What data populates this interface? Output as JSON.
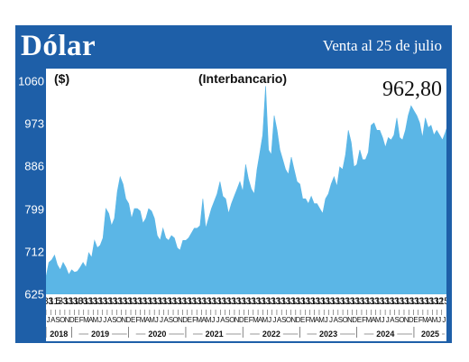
{
  "header": {
    "title": "Dólar",
    "subtitle": "Venta al 25 de julio"
  },
  "colors": {
    "frame": "#1e5fa8",
    "area": "#5bb6e6",
    "text": "#111111"
  },
  "chart_data": {
    "type": "area",
    "title": "Dólar",
    "subtitle": "(Interbancario)",
    "unit_label": "($)",
    "last_value_label": "962,80",
    "ylim": [
      625,
      1060
    ],
    "yticks": [
      "1060",
      "973",
      "886",
      "799",
      "712",
      "625"
    ],
    "xlim": [
      2018.55,
      2025.57
    ],
    "grid": false,
    "day_ticks": [
      "31",
      "31",
      "5",
      "31",
      "31",
      "31",
      "30",
      "31",
      "31",
      "31",
      "31",
      "31",
      "31",
      "31",
      "31",
      "31",
      "31",
      "31",
      "31",
      "31",
      "31",
      "31",
      "31",
      "31",
      "31",
      "31",
      "31",
      "31",
      "31",
      "31",
      "31",
      "31",
      "31",
      "31",
      "31",
      "31",
      "31",
      "31",
      "31",
      "31",
      "31",
      "31",
      "31",
      "31",
      "31",
      "31",
      "31",
      "31",
      "31",
      "31",
      "31",
      "31",
      "31",
      "31",
      "31",
      "31",
      "31",
      "31",
      "31",
      "31",
      "31",
      "31",
      "31",
      "31",
      "31",
      "31",
      "31",
      "31",
      "31",
      "31",
      "31",
      "31",
      "31",
      "31",
      "31",
      "31",
      "31",
      "31",
      "31",
      "31",
      "25"
    ],
    "month_ticks": [
      "J",
      "A",
      "S",
      "O",
      "N",
      "D",
      "E",
      "F",
      "M",
      "A",
      "M",
      "J",
      "J",
      "A",
      "S",
      "O",
      "N",
      "D",
      "E",
      "F",
      "M",
      "A",
      "M",
      "J",
      "J",
      "A",
      "S",
      "O",
      "N",
      "D",
      "E",
      "F",
      "M",
      "A",
      "M",
      "J",
      "J",
      "A",
      "S",
      "O",
      "N",
      "D",
      "E",
      "F",
      "M",
      "A",
      "M",
      "J",
      "J",
      "A",
      "S",
      "O",
      "N",
      "D",
      "E",
      "F",
      "M",
      "A",
      "M",
      "J",
      "J",
      "A",
      "S",
      "O",
      "N",
      "D",
      "E",
      "F",
      "M",
      "A",
      "M",
      "J",
      "J",
      "A",
      "S",
      "O",
      "N",
      "D",
      "E",
      "F",
      "M",
      "A",
      "M",
      "J",
      "J"
    ],
    "years": [
      {
        "label": "2018",
        "start": 2018.55,
        "end": 2019.0
      },
      {
        "label": "2019",
        "start": 2019.0,
        "end": 2020.0
      },
      {
        "label": "2020",
        "start": 2020.0,
        "end": 2021.0
      },
      {
        "label": "2021",
        "start": 2021.0,
        "end": 2022.0
      },
      {
        "label": "2022",
        "start": 2022.0,
        "end": 2023.0
      },
      {
        "label": "2023",
        "start": 2023.0,
        "end": 2024.0
      },
      {
        "label": "2024",
        "start": 2024.0,
        "end": 2025.0
      },
      {
        "label": "2025",
        "start": 2025.0,
        "end": 2025.57
      }
    ],
    "series": [
      {
        "x": [
          2018.55,
          2018.6,
          2018.65,
          2018.7,
          2018.75,
          2018.8,
          2018.85,
          2018.9,
          2018.95,
          2019.0,
          2019.05,
          2019.1,
          2019.15,
          2019.2,
          2019.25,
          2019.3,
          2019.35,
          2019.4,
          2019.45,
          2019.5,
          2019.55,
          2019.6,
          2019.65,
          2019.7,
          2019.75,
          2019.8,
          2019.85,
          2019.9,
          2019.95,
          2020.0,
          2020.05,
          2020.1,
          2020.15,
          2020.2,
          2020.25,
          2020.3,
          2020.35,
          2020.4,
          2020.45,
          2020.5,
          2020.55,
          2020.6,
          2020.65,
          2020.7,
          2020.75,
          2020.8,
          2020.85,
          2020.9,
          2020.95,
          2021.0,
          2021.05,
          2021.1,
          2021.15,
          2021.2,
          2021.25,
          2021.3,
          2021.35,
          2021.4,
          2021.45,
          2021.5,
          2021.55,
          2021.6,
          2021.65,
          2021.7,
          2021.75,
          2021.8,
          2021.85,
          2021.9,
          2021.95,
          2022.0,
          2022.05,
          2022.1,
          2022.15,
          2022.2,
          2022.25,
          2022.3,
          2022.35,
          2022.4,
          2022.45,
          2022.5,
          2022.55,
          2022.6,
          2022.65,
          2022.7,
          2022.75,
          2022.8,
          2022.85,
          2022.9,
          2022.95,
          2023.0,
          2023.05,
          2023.1,
          2023.15,
          2023.2,
          2023.25,
          2023.3,
          2023.35,
          2023.4,
          2023.45,
          2023.5,
          2023.55,
          2023.6,
          2023.65,
          2023.7,
          2023.75,
          2023.8,
          2023.85,
          2023.9,
          2023.95,
          2024.0,
          2024.05,
          2024.1,
          2024.15,
          2024.2,
          2024.25,
          2024.3,
          2024.35,
          2024.4,
          2024.45,
          2024.5,
          2024.55,
          2024.6,
          2024.65,
          2024.7,
          2024.75,
          2024.8,
          2024.85,
          2024.9,
          2024.95,
          2025.0,
          2025.05,
          2025.1,
          2025.15,
          2025.2,
          2025.25,
          2025.3,
          2025.35,
          2025.4,
          2025.45,
          2025.5,
          2025.55,
          2025.57
        ],
        "values": [
          660,
          690,
          695,
          705,
          685,
          675,
          690,
          680,
          665,
          675,
          670,
          672,
          680,
          690,
          680,
          710,
          700,
          735,
          720,
          725,
          740,
          800,
          790,
          765,
          780,
          835,
          865,
          850,
          820,
          810,
          780,
          800,
          800,
          795,
          770,
          780,
          800,
          795,
          780,
          745,
          735,
          760,
          740,
          735,
          745,
          740,
          720,
          715,
          735,
          735,
          740,
          750,
          760,
          760,
          765,
          820,
          760,
          780,
          800,
          815,
          830,
          855,
          825,
          820,
          790,
          810,
          825,
          840,
          855,
          835,
          890,
          860,
          840,
          830,
          880,
          915,
          950,
          1050,
          920,
          910,
          990,
          960,
          920,
          900,
          880,
          870,
          905,
          880,
          855,
          850,
          820,
          820,
          810,
          825,
          810,
          810,
          800,
          790,
          820,
          830,
          850,
          865,
          845,
          885,
          880,
          910,
          960,
          935,
          885,
          890,
          920,
          900,
          900,
          915,
          970,
          975,
          960,
          960,
          945,
          925,
          945,
          940,
          950,
          985,
          945,
          940,
          960,
          990,
          1010,
          1000,
          990,
          975,
          945,
          985,
          965,
          970,
          950,
          960,
          950,
          940,
          955,
          962.8
        ]
      }
    ]
  }
}
